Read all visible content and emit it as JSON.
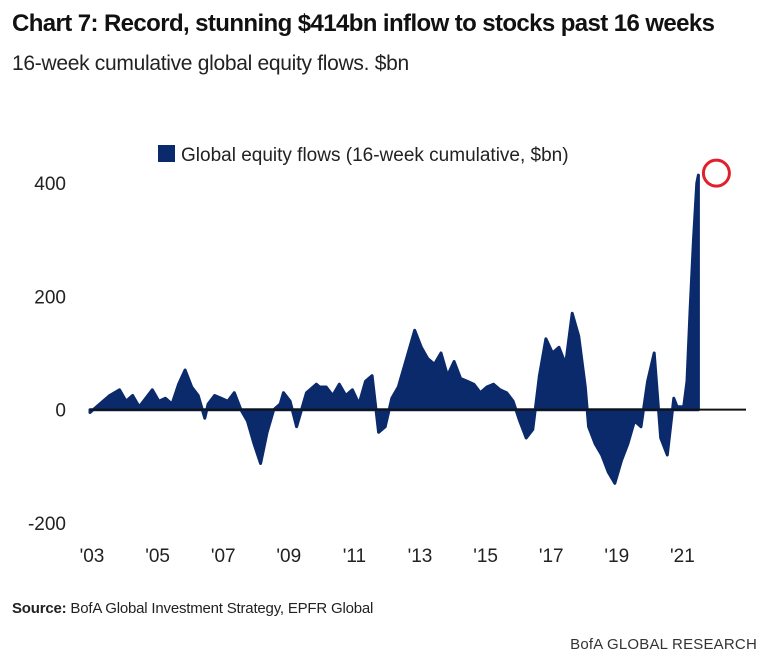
{
  "title": "Chart 7: Record, stunning $414bn inflow to stocks past 16 weeks",
  "subtitle": "16-week cumulative global equity flows. $bn",
  "source_label": "Source:",
  "source_text": "BofA Global Investment Strategy, EPFR Global",
  "brand": "BofA GLOBAL RESEARCH",
  "colors": {
    "series": "#0b2a6b",
    "highlight": "#e0202a",
    "axis": "#111111"
  },
  "chart_data": {
    "type": "area",
    "title": "Chart 7: Record, stunning $414bn inflow to stocks past 16 weeks",
    "subtitle": "16-week cumulative global equity flows. $bn",
    "xlabel": "",
    "ylabel": "",
    "ylim": [
      -200,
      450
    ],
    "xlim": [
      2003.0,
      2023.0
    ],
    "y_ticks": [
      400,
      200,
      0,
      -200
    ],
    "y_tick_labels": [
      "400",
      "200",
      "0",
      "-200"
    ],
    "x_ticks": [
      2003,
      2005,
      2007,
      2009,
      2011,
      2013,
      2015,
      2017,
      2019,
      2021
    ],
    "x_tick_labels": [
      "'03",
      "'05",
      "'07",
      "'09",
      "'11",
      "'13",
      "'15",
      "'17",
      "'19",
      "'21"
    ],
    "grid": false,
    "legend_position": "top-center",
    "highlight": {
      "x": 2021.55,
      "y": 414,
      "shape": "circle"
    },
    "series": [
      {
        "name": "Global equity flows (16-week cumulative, $bn)",
        "x": [
          2003.0,
          2003.3,
          2003.6,
          2003.9,
          2004.1,
          2004.3,
          2004.5,
          2004.7,
          2004.9,
          2005.1,
          2005.3,
          2005.5,
          2005.7,
          2005.9,
          2006.1,
          2006.3,
          2006.5,
          2006.6,
          2006.8,
          2007.0,
          2007.2,
          2007.4,
          2007.6,
          2007.8,
          2008.0,
          2008.2,
          2008.4,
          2008.6,
          2008.8,
          2008.9,
          2009.1,
          2009.3,
          2009.6,
          2009.9,
          2010.0,
          2010.2,
          2010.4,
          2010.6,
          2010.8,
          2011.0,
          2011.2,
          2011.4,
          2011.6,
          2011.8,
          2012.0,
          2012.2,
          2012.4,
          2012.6,
          2012.9,
          2013.1,
          2013.3,
          2013.5,
          2013.7,
          2013.9,
          2014.1,
          2014.3,
          2014.5,
          2014.7,
          2014.9,
          2015.1,
          2015.3,
          2015.5,
          2015.7,
          2015.9,
          2016.1,
          2016.3,
          2016.5,
          2016.7,
          2016.9,
          2017.1,
          2017.3,
          2017.5,
          2017.7,
          2017.9,
          2018.1,
          2018.2,
          2018.4,
          2018.6,
          2018.8,
          2019.0,
          2019.2,
          2019.4,
          2019.6,
          2019.8,
          2020.0,
          2020.2,
          2020.4,
          2020.6,
          2020.8,
          2020.9,
          2021.1,
          2021.2,
          2021.3,
          2021.4,
          2021.5,
          2021.55
        ],
        "values": [
          -5,
          10,
          25,
          35,
          15,
          25,
          5,
          20,
          35,
          15,
          20,
          10,
          45,
          70,
          40,
          25,
          -15,
          10,
          25,
          20,
          15,
          30,
          0,
          -20,
          -60,
          -95,
          -40,
          0,
          10,
          30,
          15,
          -30,
          30,
          45,
          40,
          40,
          25,
          45,
          25,
          35,
          10,
          50,
          60,
          -40,
          -30,
          20,
          40,
          80,
          140,
          110,
          90,
          80,
          100,
          60,
          85,
          55,
          50,
          45,
          30,
          40,
          45,
          35,
          30,
          15,
          -20,
          -50,
          -35,
          60,
          125,
          100,
          110,
          80,
          170,
          130,
          40,
          -30,
          -60,
          -80,
          -110,
          -130,
          -90,
          -60,
          -20,
          -30,
          50,
          100,
          -50,
          -80,
          20,
          5,
          5,
          50,
          180,
          300,
          400,
          414
        ]
      }
    ]
  }
}
